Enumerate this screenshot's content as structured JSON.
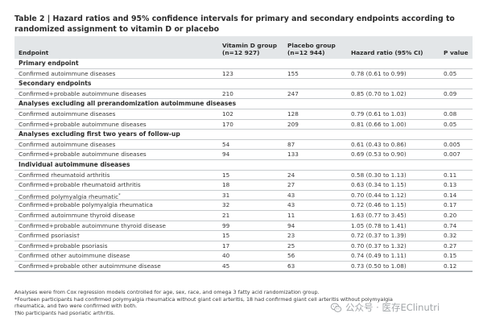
{
  "caption": "Table 2 | Hazard ratios and 95% confidence intervals for primary and secondary endpoints according to randomized assignment to vitamin D or placebo",
  "columns": {
    "endpoint": "Endpoint",
    "vitd": "Vitamin D group",
    "vitd_n": "(n=12 927)",
    "placebo": "Placebo group",
    "placebo_n": "(n=12 944)",
    "hr": "Hazard ratio (95% CI)",
    "p": "P value"
  },
  "sections": [
    {
      "title": "Primary endpoint",
      "rows": [
        {
          "endpoint": "Confirmed autoimmune diseases",
          "mark": "",
          "vitd": "123",
          "placebo": "155",
          "hr": "0.78 (0.61 to 0.99)",
          "p": "0.05"
        }
      ]
    },
    {
      "title": "Secondary endpoints",
      "rows": [
        {
          "endpoint": "Confirmed+probable autoimmune diseases",
          "mark": "",
          "vitd": "210",
          "placebo": "247",
          "hr": "0.85 (0.70 to 1.02)",
          "p": "0.09"
        }
      ]
    },
    {
      "title": "Analyses excluding all prerandomization autoimmune diseases",
      "rows": [
        {
          "endpoint": "Confirmed autoimmune diseases",
          "mark": "",
          "vitd": "102",
          "placebo": "128",
          "hr": "0.79 (0.61 to 1.03)",
          "p": "0.08"
        },
        {
          "endpoint": "Confirmed+probable autoimmune diseases",
          "mark": "",
          "vitd": "170",
          "placebo": "209",
          "hr": "0.81 (0.66 to 1.00)",
          "p": "0.05"
        }
      ]
    },
    {
      "title": "Analyses excluding first two years of follow-up",
      "rows": [
        {
          "endpoint": "Confirmed autoimmune diseases",
          "mark": "",
          "vitd": "54",
          "placebo": "87",
          "hr": "0.61 (0.43 to 0.86)",
          "p": "0.005"
        },
        {
          "endpoint": "Confirmed+probable autoimmune diseases",
          "mark": "",
          "vitd": "94",
          "placebo": "133",
          "hr": "0.69 (0.53 to 0.90)",
          "p": "0.007"
        }
      ]
    },
    {
      "title": "Individual autoimmune diseases",
      "rows": [
        {
          "endpoint": "Confirmed rheumatoid arthritis",
          "mark": "",
          "vitd": "15",
          "placebo": "24",
          "hr": "0.58 (0.30 to 1.13)",
          "p": "0.11"
        },
        {
          "endpoint": "Confirmed+probable rheumatoid arthritis",
          "mark": "",
          "vitd": "18",
          "placebo": "27",
          "hr": "0.63 (0.34 to 1.15)",
          "p": "0.13"
        },
        {
          "endpoint": "Confirmed polymyalgia rheumatic",
          "mark": "*",
          "vitd": "31",
          "placebo": "43",
          "hr": "0.70 (0.44 to 1.12)",
          "p": "0.14"
        },
        {
          "endpoint": "Confirmed+probable polymyalgia rheumatica",
          "mark": "",
          "vitd": "32",
          "placebo": "43",
          "hr": "0.72 (0.46 to 1.15)",
          "p": "0.17"
        },
        {
          "endpoint": "Confirmed autoimmune thyroid disease",
          "mark": "",
          "vitd": "21",
          "placebo": "11",
          "hr": "1.63 (0.77 to 3.45)",
          "p": "0.20"
        },
        {
          "endpoint": "Confirmed+probable autoimmune thyroid disease",
          "mark": "",
          "vitd": "99",
          "placebo": "94",
          "hr": "1.05 (0.78 to 1.41)",
          "p": "0.74"
        },
        {
          "endpoint": "Confirmed psoriasis†",
          "mark": "",
          "vitd": "15",
          "placebo": "23",
          "hr": "0.72 (0.37 to 1.39)",
          "p": "0.32"
        },
        {
          "endpoint": "Confirmed+probable psoriasis",
          "mark": "",
          "vitd": "17",
          "placebo": "25",
          "hr": "0.70 (0.37 to 1.32)",
          "p": "0.27"
        },
        {
          "endpoint": "Confirmed other autoimmune disease",
          "mark": "",
          "vitd": "40",
          "placebo": "56",
          "hr": "0.74 (0.49 to 1.11)",
          "p": "0.15"
        },
        {
          "endpoint": "Confirmed+probable other autoimmune disease",
          "mark": "",
          "vitd": "45",
          "placebo": "63",
          "hr": "0.73 (0.50 to 1.08)",
          "p": "0.12"
        }
      ]
    }
  ],
  "footnotes": [
    "Analyses were from Cox regression models controlled for age, sex, race, and omega 3 fatty acid randomization group.",
    "*Fourteen participants had confirmed polymyalgia rheumatica without giant cell arteritis, 18 had confirmed giant cell arteritis without polymyalgia rheumatica, and two were confirmed with both.",
    "†No participants had psoriatic arthritis."
  ],
  "watermark": {
    "text": "公众号 · 医存EClinutri",
    "icon": "wechat-icon",
    "color": "#a2a6a9"
  }
}
